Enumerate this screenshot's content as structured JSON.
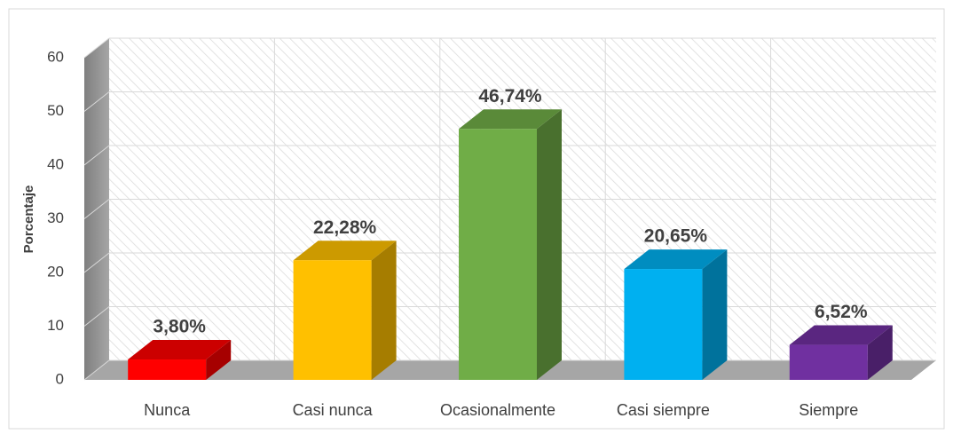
{
  "chart_data": {
    "type": "bar3d",
    "y_label": "Porcentaje",
    "categories": [
      "Nunca",
      "Casi nunca",
      "Ocasionalmente",
      "Casi siempre",
      "Siempre"
    ],
    "values": [
      3.8,
      22.28,
      46.74,
      20.65,
      6.52
    ],
    "value_labels": [
      "3,80%",
      "22,28%",
      "46,74%",
      "20,65%",
      "6,52%"
    ],
    "colors": [
      "#ff0000",
      "#ffc000",
      "#70ad47",
      "#00b0f0",
      "#7030a0"
    ],
    "ylim": [
      0,
      60
    ],
    "yticks": [
      0,
      10,
      20,
      30,
      40,
      50,
      60
    ],
    "grid": true
  }
}
